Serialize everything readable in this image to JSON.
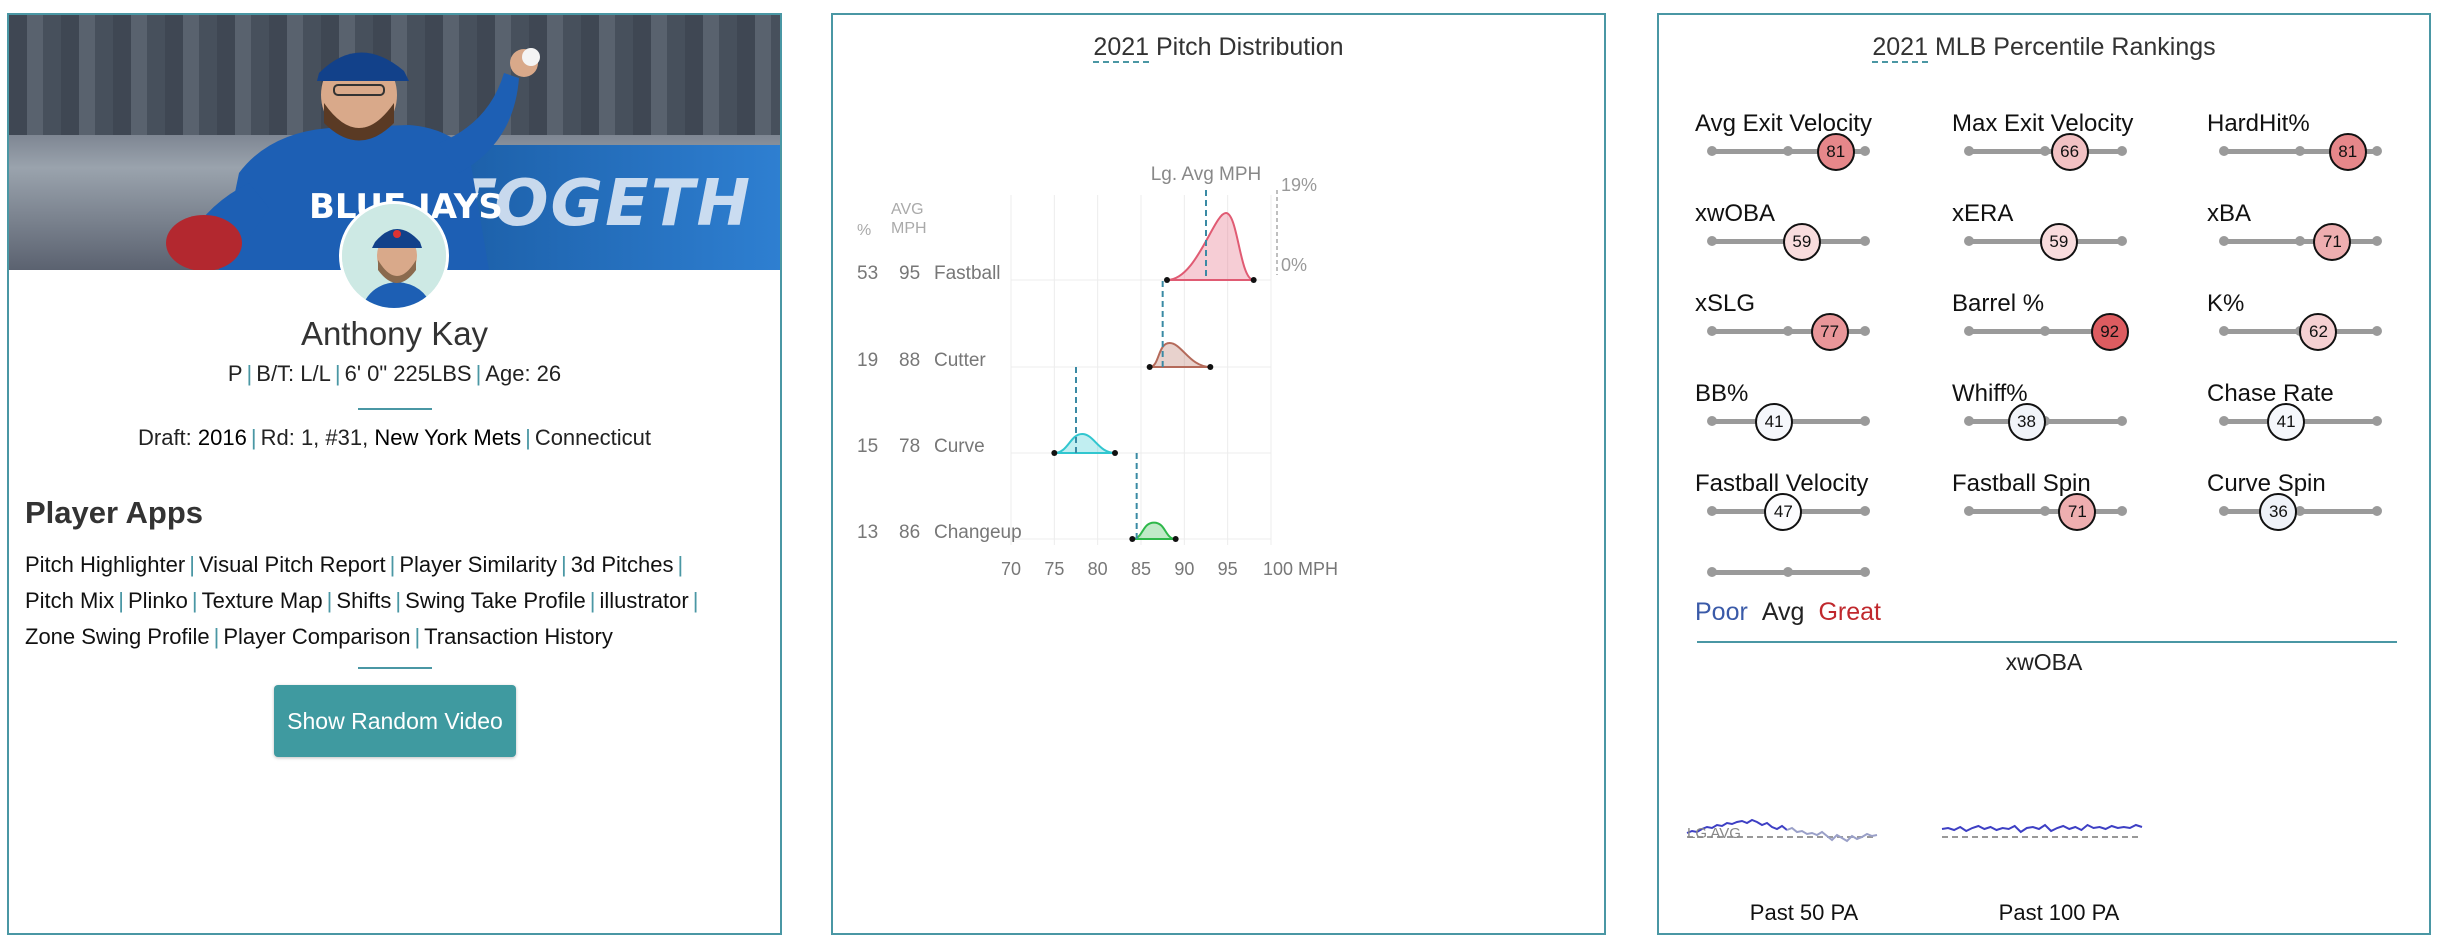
{
  "player": {
    "name": "Anthony Kay",
    "position": "P",
    "bats_throws": "B/T: L/L",
    "height_weight": "6' 0\" 225LBS",
    "age": "Age: 26",
    "draft_label": "Draft:",
    "draft_year": "2016",
    "draft_round": "Rd: 1, #31,",
    "draft_team": "New York Mets",
    "school": "Connecticut"
  },
  "hero": {
    "wall_text": "TOGETH"
  },
  "apps": {
    "title": "Player Apps",
    "links": [
      "Pitch Highlighter",
      "Visual Pitch Report",
      "Player Similarity",
      "3d Pitches",
      "Pitch Mix",
      "Plinko",
      "Texture Map",
      "Shifts",
      "Swing Take Profile",
      "illustrator",
      "Zone Swing Profile",
      "Player Comparison",
      "Transaction History"
    ],
    "button": "Show Random Video"
  },
  "pitch_dist": {
    "title_year": "2021",
    "title_rest": "Pitch Distribution",
    "lg_avg_label": "Lg. Avg MPH",
    "pct_header": "%",
    "mph_header_1": "AVG",
    "mph_header_2": "MPH",
    "scale_top": "19%",
    "scale_bottom": "0%",
    "x_ticks": [
      "70",
      "75",
      "80",
      "85",
      "90",
      "95",
      "100 MPH"
    ],
    "chart_data": {
      "type": "area",
      "x_range": [
        70,
        100
      ],
      "pitches": [
        {
          "name": "Fastball",
          "pct": "53",
          "avg_mph": "95",
          "lg_avg": 92.5,
          "range": [
            88,
            98
          ],
          "peak": 94.8,
          "color": "#e05b73"
        },
        {
          "name": "Cutter",
          "pct": "19",
          "avg_mph": "88",
          "lg_avg": 87.5,
          "range": [
            86,
            93
          ],
          "peak": 88.3,
          "color": "#b46a5a"
        },
        {
          "name": "Curve",
          "pct": "15",
          "avg_mph": "78",
          "lg_avg": 77.5,
          "range": [
            75,
            82
          ],
          "peak": 78.2,
          "color": "#31c6cf"
        },
        {
          "name": "Changeup",
          "pct": "13",
          "avg_mph": "86",
          "lg_avg": 84.5,
          "range": [
            84,
            89
          ],
          "peak": 86.5,
          "color": "#2eb84a"
        }
      ]
    }
  },
  "percentile": {
    "title_year": "2021",
    "title_rest": "MLB Percentile Rankings",
    "items": [
      {
        "label": "Avg Exit Velocity",
        "value": 81
      },
      {
        "label": "Max Exit Velocity",
        "value": 66
      },
      {
        "label": "HardHit%",
        "value": 81
      },
      {
        "label": "xwOBA",
        "value": 59
      },
      {
        "label": "xERA",
        "value": 59
      },
      {
        "label": "xBA",
        "value": 71
      },
      {
        "label": "xSLG",
        "value": 77
      },
      {
        "label": "Barrel %",
        "value": 92
      },
      {
        "label": "K%",
        "value": 62
      },
      {
        "label": "BB%",
        "value": 41
      },
      {
        "label": "Whiff%",
        "value": 38
      },
      {
        "label": "Chase Rate",
        "value": 41
      },
      {
        "label": "Fastball Velocity",
        "value": 47
      },
      {
        "label": "Fastball Spin",
        "value": 71
      },
      {
        "label": "Curve Spin",
        "value": 36
      }
    ],
    "legend": {
      "poor": "Poor",
      "avg": "Avg",
      "great": "Great",
      "poor_color": "#3a5aa8",
      "great_color": "#c0282d"
    },
    "xwoba_title": "xwOBA",
    "lg_avg": "LG AVG",
    "past50": "Past 50 PA",
    "past100": "Past 100 PA"
  }
}
